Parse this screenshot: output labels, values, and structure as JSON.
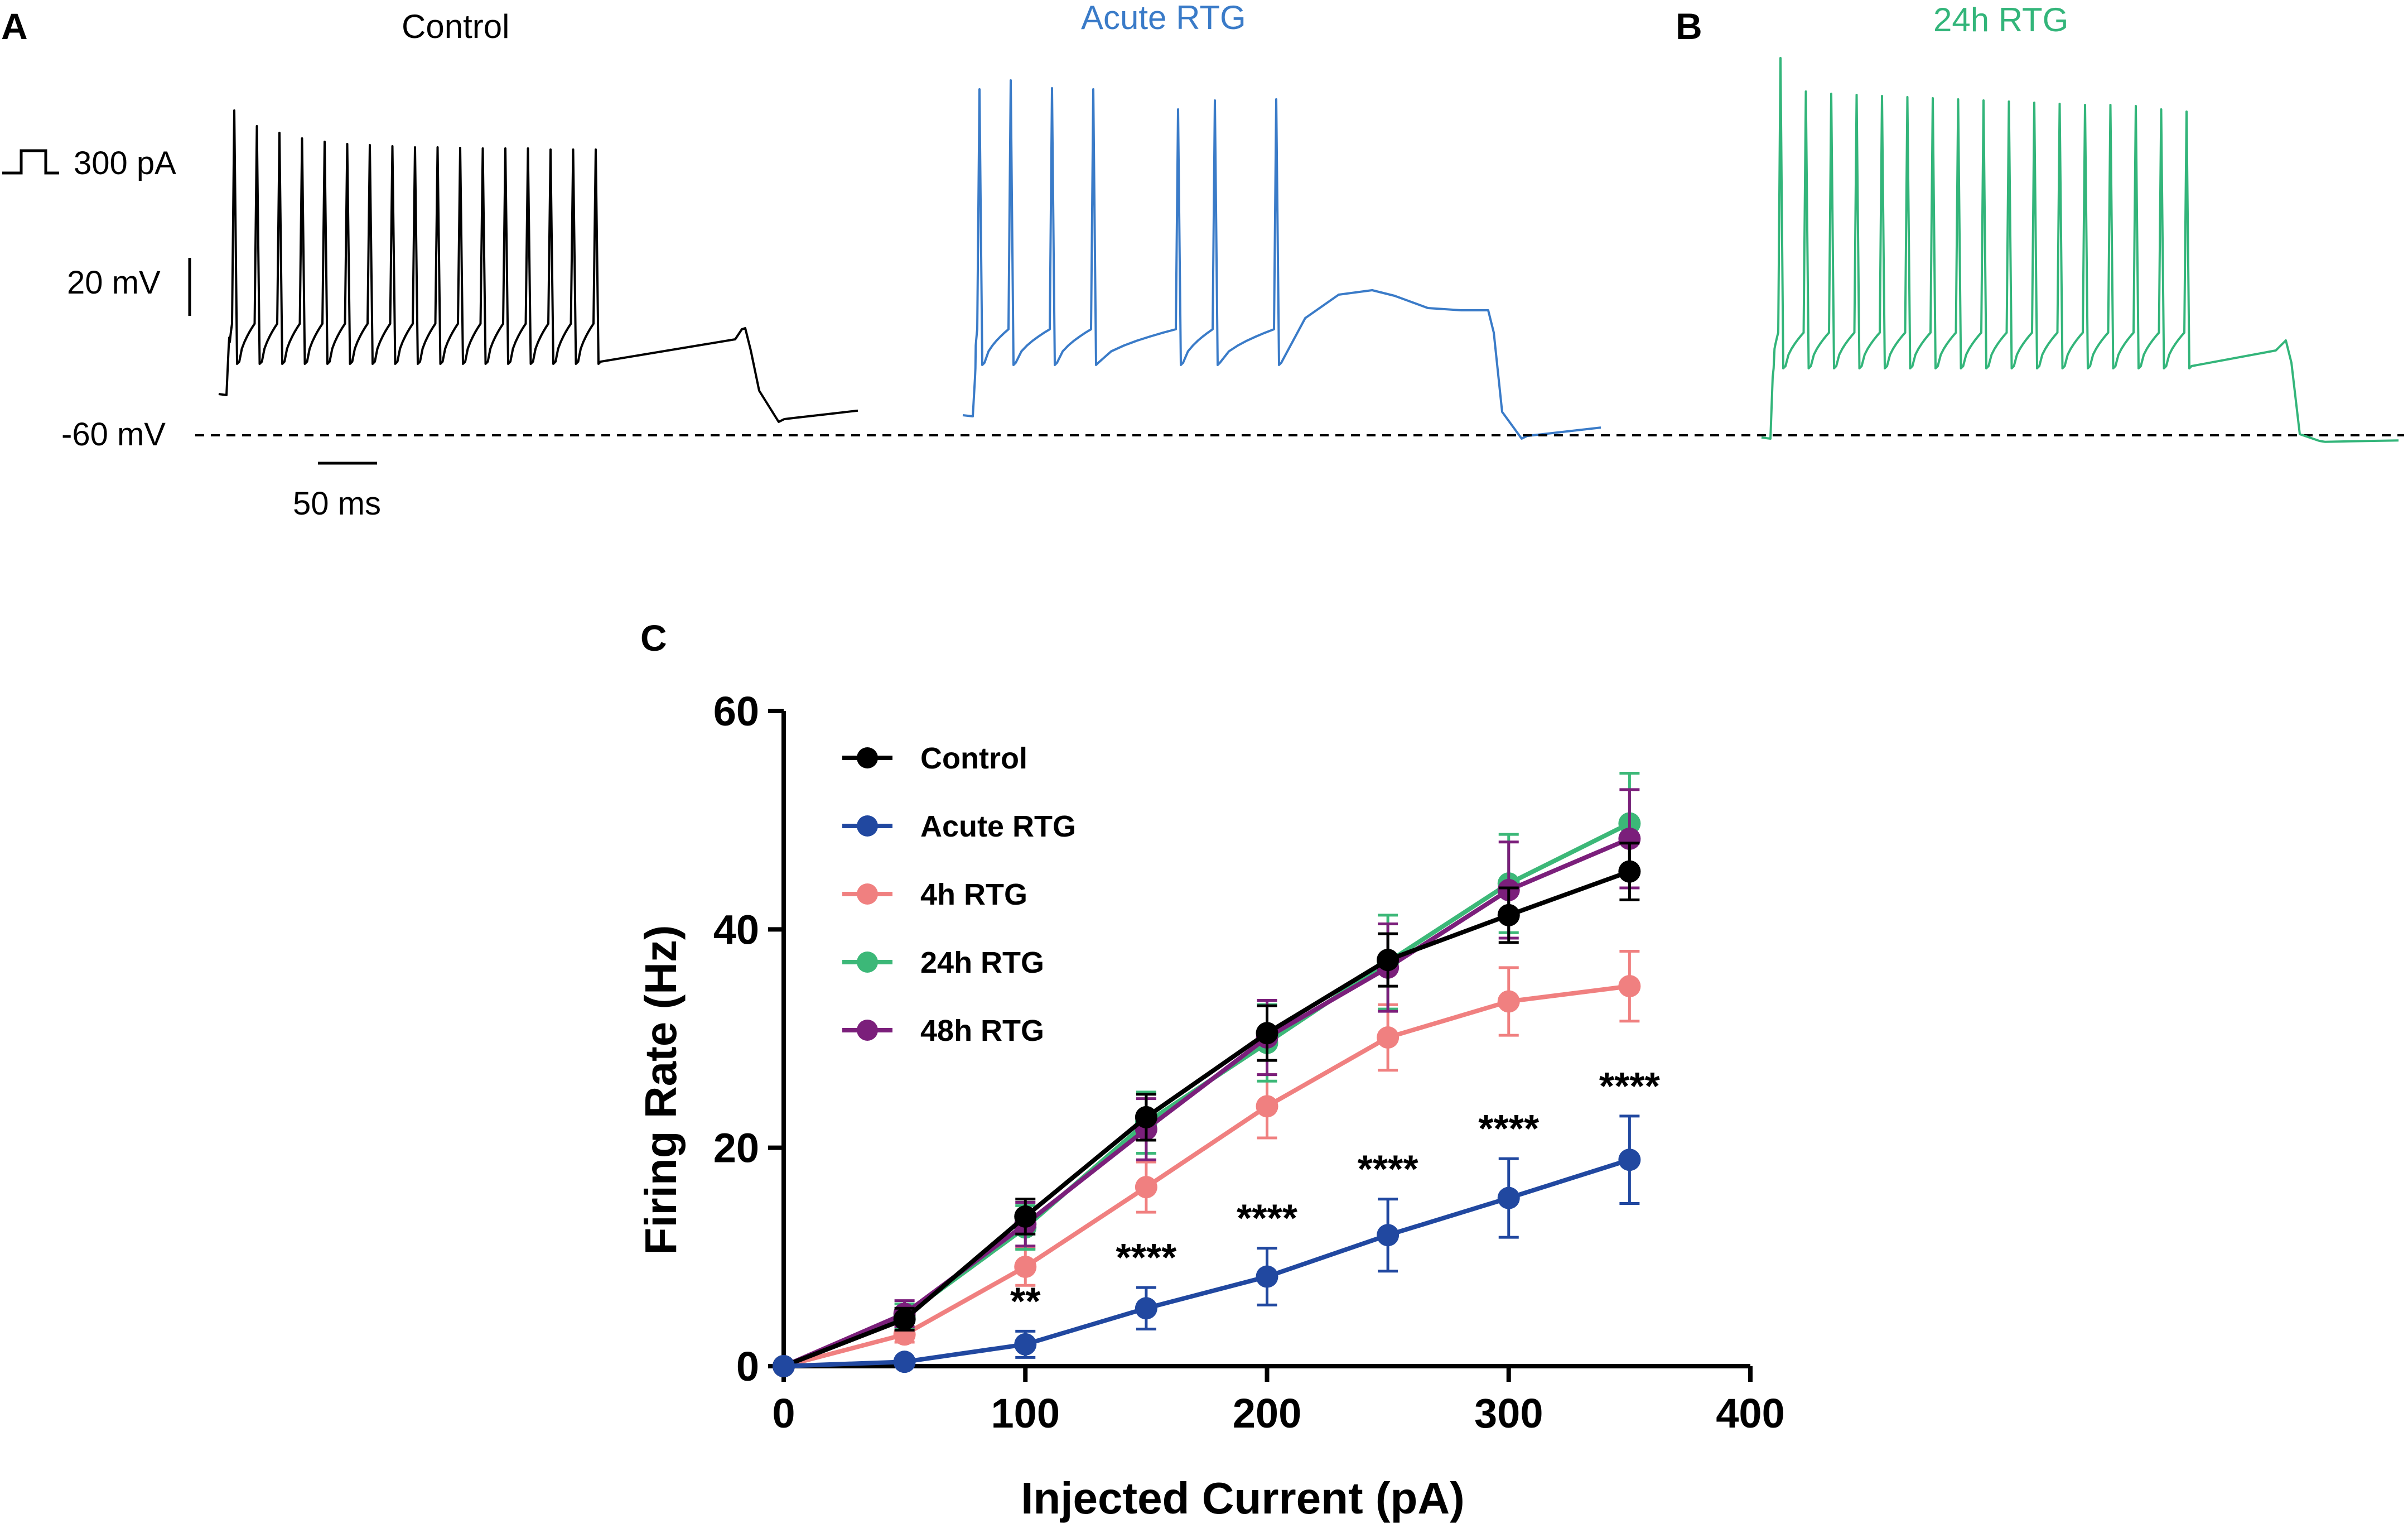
{
  "panel_a": {
    "letter": "A",
    "control_title": "Control",
    "acute_title": "Acute RTG",
    "step_label": "300 pA",
    "voltage_scale_label": "20 mV",
    "baseline_label": "-60 mV",
    "time_scale_label": "50 ms"
  },
  "panel_b": {
    "letter": "B",
    "title": "24h RTG"
  },
  "panel_c": {
    "letter": "C"
  },
  "colors": {
    "control": "#000000",
    "acute": "#2148a0",
    "h4": "#f08080",
    "h24": "#3cb878",
    "h48": "#7b1f7b",
    "acute_trace": "#3a7bc8",
    "h24_trace": "#33b57a"
  },
  "chart_data": {
    "type": "line",
    "title": "",
    "xlabel": "Injected Current (pA)",
    "ylabel": "Firing Rate (Hz)",
    "xlim": [
      0,
      400
    ],
    "ylim": [
      0,
      60
    ],
    "x_ticks": [
      "0",
      "100",
      "200",
      "300",
      "400"
    ],
    "y_ticks": [
      "0",
      "20",
      "40",
      "60"
    ],
    "x": [
      0,
      50,
      100,
      150,
      200,
      250,
      300,
      350
    ],
    "series": [
      {
        "name": "Control",
        "color": "#000000",
        "values": [
          0,
          4.3,
          13.7,
          22.8,
          30.5,
          37.2,
          41.3,
          45.3
        ],
        "errors": [
          0,
          1.0,
          1.6,
          2.1,
          2.5,
          2.4,
          2.5,
          2.6
        ]
      },
      {
        "name": "Acute RTG",
        "color": "#2148a0",
        "values": [
          0,
          0.4,
          2.0,
          5.3,
          8.2,
          12.0,
          15.4,
          18.9
        ],
        "errors": [
          0,
          0.3,
          1.2,
          1.9,
          2.6,
          3.3,
          3.6,
          4.0
        ]
      },
      {
        "name": "4h RTG",
        "color": "#f08080",
        "values": [
          0,
          2.9,
          9.1,
          16.4,
          23.8,
          30.1,
          33.4,
          34.8
        ],
        "errors": [
          0,
          0.7,
          1.7,
          2.3,
          2.9,
          3.0,
          3.1,
          3.2
        ]
      },
      {
        "name": "24h RTG",
        "color": "#3cb878",
        "values": [
          0,
          4.6,
          12.7,
          22.3,
          29.6,
          37.0,
          44.2,
          49.7
        ],
        "errors": [
          0,
          1.1,
          2.0,
          2.8,
          3.5,
          4.3,
          4.5,
          4.6
        ]
      },
      {
        "name": "48h RTG",
        "color": "#7b1f7b",
        "values": [
          0,
          4.8,
          13.0,
          21.7,
          30.1,
          36.5,
          43.6,
          48.3
        ],
        "errors": [
          0,
          1.2,
          2.0,
          2.8,
          3.4,
          4.0,
          4.4,
          4.5
        ]
      }
    ],
    "significance": [
      {
        "x": 100,
        "label": "**"
      },
      {
        "x": 150,
        "label": "****"
      },
      {
        "x": 200,
        "label": "****"
      },
      {
        "x": 250,
        "label": "****"
      },
      {
        "x": 300,
        "label": "****"
      },
      {
        "x": 350,
        "label": "****"
      }
    ],
    "legend_position": "top-left"
  }
}
